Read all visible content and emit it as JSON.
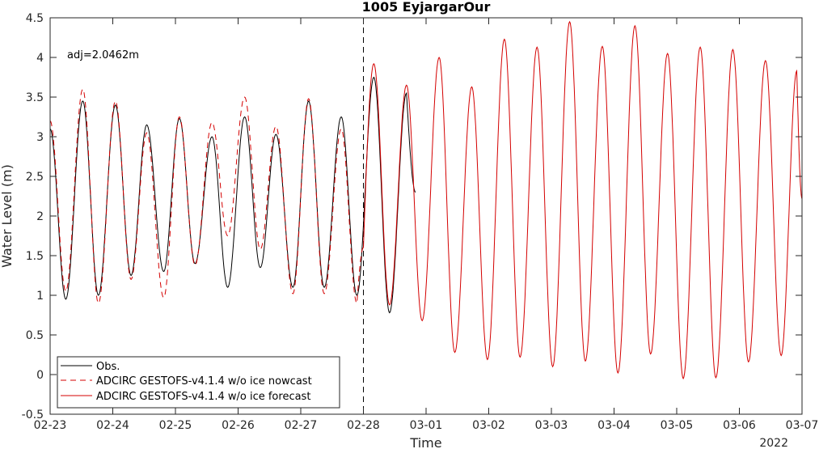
{
  "chart_data": {
    "type": "line",
    "title": "1005 EyjargarOur",
    "xlabel": "Time",
    "ylabel": "Water Level (m)",
    "year_label": "2022",
    "annotation": "adj=2.0462m",
    "xlim": [
      "2022-02-23",
      "2022-03-07"
    ],
    "ylim": [
      -0.5,
      4.5
    ],
    "x_ticks": [
      "02-23",
      "02-24",
      "02-25",
      "02-26",
      "02-27",
      "02-28",
      "03-01",
      "03-02",
      "03-03",
      "03-04",
      "03-05",
      "03-06",
      "03-07"
    ],
    "y_ticks": [
      -0.5,
      0,
      0.5,
      1,
      1.5,
      2,
      2.5,
      3,
      3.5,
      4,
      4.5
    ],
    "y_tick_labels": [
      "-0.5",
      "0",
      "0.5",
      "1",
      "1.5",
      "2",
      "2.5",
      "3",
      "3.5",
      "4",
      "4.5"
    ],
    "grid": false,
    "legend_position": "bottom-left",
    "vline": {
      "x": "2022-02-28",
      "style": "dashed",
      "color": "#000000"
    },
    "series": [
      {
        "name": "Obs.",
        "color": "#000000",
        "dash": "solid",
        "points": [
          [
            "2022-02-23 00:00",
            3.1
          ],
          [
            "2022-02-23 06:00",
            0.95
          ],
          [
            "2022-02-23 12:30",
            3.45
          ],
          [
            "2022-02-23 18:30",
            1.0
          ],
          [
            "2022-02-24 01:00",
            3.4
          ],
          [
            "2022-02-24 07:00",
            1.25
          ],
          [
            "2022-02-24 13:00",
            3.15
          ],
          [
            "2022-02-24 19:30",
            1.3
          ],
          [
            "2022-02-25 01:30",
            3.23
          ],
          [
            "2022-02-25 07:30",
            1.4
          ],
          [
            "2022-02-25 14:00",
            3.0
          ],
          [
            "2022-02-25 20:00",
            1.1
          ],
          [
            "2022-02-26 02:30",
            3.25
          ],
          [
            "2022-02-26 08:30",
            1.35
          ],
          [
            "2022-02-26 14:30",
            3.03
          ],
          [
            "2022-02-26 21:00",
            1.1
          ],
          [
            "2022-02-27 03:00",
            3.45
          ],
          [
            "2022-02-27 09:00",
            1.1
          ],
          [
            "2022-02-27 15:30",
            3.25
          ],
          [
            "2022-02-27 21:30",
            1.0
          ],
          [
            "2022-02-28 04:00",
            3.75
          ],
          [
            "2022-02-28 10:00",
            0.78
          ],
          [
            "2022-02-28 16:30",
            3.55
          ],
          [
            "2022-02-28 20:00",
            2.3
          ]
        ]
      },
      {
        "name": "ADCIRC GESTOFS-v4.1.4 w/o ice nowcast",
        "color": "#d40000",
        "dash": "dashed",
        "points": [
          [
            "2022-02-23 00:00",
            3.2
          ],
          [
            "2022-02-23 06:00",
            1.05
          ],
          [
            "2022-02-23 12:30",
            3.6
          ],
          [
            "2022-02-23 18:30",
            0.9
          ],
          [
            "2022-02-24 01:00",
            3.45
          ],
          [
            "2022-02-24 07:00",
            1.2
          ],
          [
            "2022-02-24 13:00",
            3.05
          ],
          [
            "2022-02-24 19:30",
            0.97
          ],
          [
            "2022-02-25 01:30",
            3.25
          ],
          [
            "2022-02-25 07:30",
            1.38
          ],
          [
            "2022-02-25 14:00",
            3.18
          ],
          [
            "2022-02-25 20:00",
            1.75
          ],
          [
            "2022-02-26 02:30",
            3.5
          ],
          [
            "2022-02-26 08:30",
            1.58
          ],
          [
            "2022-02-26 14:30",
            3.13
          ],
          [
            "2022-02-26 21:00",
            1.02
          ],
          [
            "2022-02-27 03:00",
            3.48
          ],
          [
            "2022-02-27 09:00",
            1.02
          ],
          [
            "2022-02-27 15:30",
            3.1
          ],
          [
            "2022-02-27 21:30",
            0.9
          ],
          [
            "2022-02-28 00:00",
            1.6
          ]
        ]
      },
      {
        "name": "ADCIRC GESTOFS-v4.1.4 w/o ice forecast",
        "color": "#d40000",
        "dash": "solid",
        "points": [
          [
            "2022-02-28 00:00",
            1.6
          ],
          [
            "2022-02-28 04:00",
            3.92
          ],
          [
            "2022-02-28 10:00",
            0.88
          ],
          [
            "2022-02-28 16:30",
            3.65
          ],
          [
            "2022-02-28 22:30",
            0.68
          ],
          [
            "2022-03-01 05:00",
            4.0
          ],
          [
            "2022-03-01 11:00",
            0.28
          ],
          [
            "2022-03-01 17:30",
            3.63
          ],
          [
            "2022-03-01 23:30",
            0.19
          ],
          [
            "2022-03-02 06:00",
            4.23
          ],
          [
            "2022-03-02 12:00",
            0.22
          ],
          [
            "2022-03-02 18:30",
            4.13
          ],
          [
            "2022-03-03 00:30",
            0.1
          ],
          [
            "2022-03-03 07:00",
            4.45
          ],
          [
            "2022-03-03 13:00",
            0.17
          ],
          [
            "2022-03-03 19:30",
            4.14
          ],
          [
            "2022-03-04 01:30",
            0.02
          ],
          [
            "2022-03-04 08:00",
            4.4
          ],
          [
            "2022-03-04 14:00",
            0.26
          ],
          [
            "2022-03-04 20:30",
            4.05
          ],
          [
            "2022-03-05 02:30",
            -0.05
          ],
          [
            "2022-03-05 09:00",
            4.13
          ],
          [
            "2022-03-05 15:00",
            -0.04
          ],
          [
            "2022-03-05 21:30",
            4.1
          ],
          [
            "2022-03-06 03:30",
            0.16
          ],
          [
            "2022-03-06 10:00",
            3.96
          ],
          [
            "2022-03-06 16:00",
            0.24
          ],
          [
            "2022-03-06 22:00",
            3.83
          ],
          [
            "2022-03-07 00:00",
            2.22
          ]
        ]
      }
    ]
  }
}
